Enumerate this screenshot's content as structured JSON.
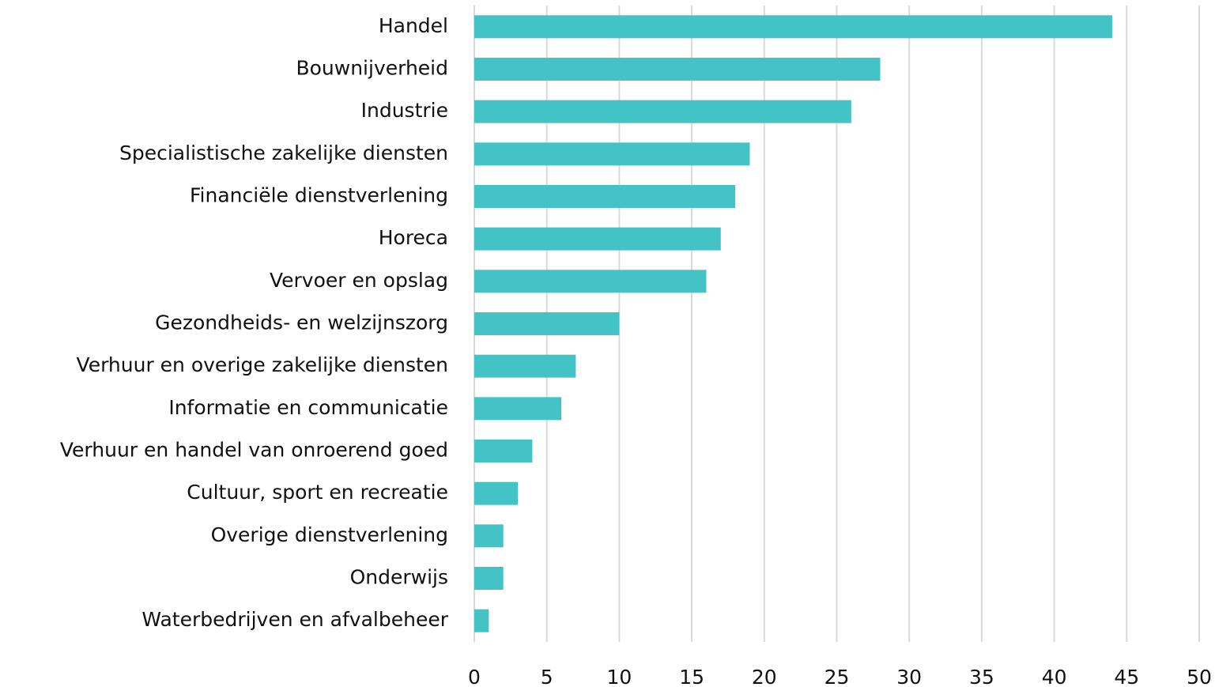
{
  "chart_data": {
    "type": "bar",
    "orientation": "horizontal",
    "categories": [
      "Handel",
      "Bouwnijverheid",
      "Industrie",
      "Specialistische zakelijke diensten",
      "Financiële dienstverlening",
      "Horeca",
      "Vervoer en opslag",
      "Gezondheids- en welzijnszorg",
      "Verhuur en overige zakelijke diensten",
      "Informatie en communicatie",
      "Verhuur en handel van onroerend goed",
      "Cultuur, sport en recreatie",
      "Overige dienstverlening",
      "Onderwijs",
      "Waterbedrijven en afvalbeheer"
    ],
    "values": [
      44,
      28,
      26,
      19,
      18,
      17,
      16,
      10,
      7,
      6,
      4,
      3,
      2,
      2,
      1
    ],
    "color": "#43c3c6",
    "xlim": [
      0,
      50
    ],
    "xticks": [
      0,
      5,
      10,
      15,
      20,
      25,
      30,
      35,
      40,
      45,
      50
    ],
    "grid": true
  }
}
